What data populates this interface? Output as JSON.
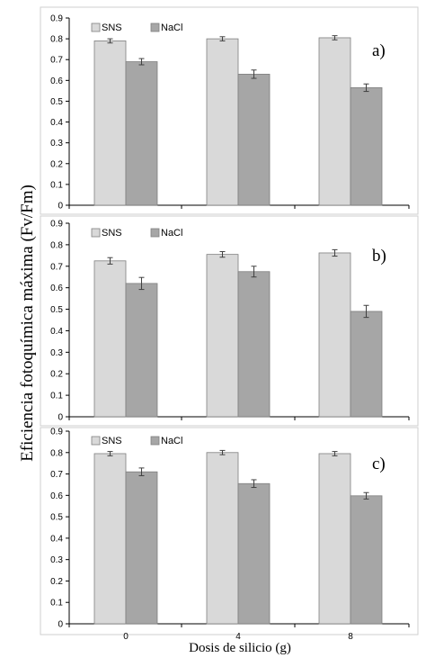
{
  "chart_data": {
    "type": "bar",
    "ylabel": "Eficiencia fotoquímica máxima (Fv/Fm)",
    "xlabel": "Dosis de silicio (g)",
    "categories": [
      "0",
      "4",
      "8"
    ],
    "ylim": [
      0,
      0.9
    ],
    "yticks": [
      "0",
      "0.1",
      "0.2",
      "0.3",
      "0.4",
      "0.5",
      "0.6",
      "0.7",
      "0.8",
      "0.9"
    ],
    "legend": [
      "SNS",
      "NaCl"
    ],
    "colors": {
      "SNS": "#d9d9d9",
      "NaCl": "#a6a6a6"
    },
    "panels": [
      {
        "label": "a)",
        "series": [
          {
            "name": "SNS",
            "values": [
              0.79,
              0.8,
              0.805
            ],
            "errors": [
              0.01,
              0.01,
              0.01
            ]
          },
          {
            "name": "NaCl",
            "values": [
              0.69,
              0.63,
              0.565
            ],
            "errors": [
              0.015,
              0.02,
              0.018
            ]
          }
        ]
      },
      {
        "label": "b)",
        "series": [
          {
            "name": "SNS",
            "values": [
              0.725,
              0.755,
              0.762
            ],
            "errors": [
              0.015,
              0.013,
              0.015
            ]
          },
          {
            "name": "NaCl",
            "values": [
              0.62,
              0.675,
              0.49
            ],
            "errors": [
              0.028,
              0.025,
              0.028
            ]
          }
        ]
      },
      {
        "label": "c)",
        "series": [
          {
            "name": "SNS",
            "values": [
              0.795,
              0.8,
              0.795
            ],
            "errors": [
              0.01,
              0.01,
              0.01
            ]
          },
          {
            "name": "NaCl",
            "values": [
              0.71,
              0.655,
              0.598
            ],
            "errors": [
              0.018,
              0.018,
              0.015
            ]
          }
        ]
      }
    ]
  }
}
